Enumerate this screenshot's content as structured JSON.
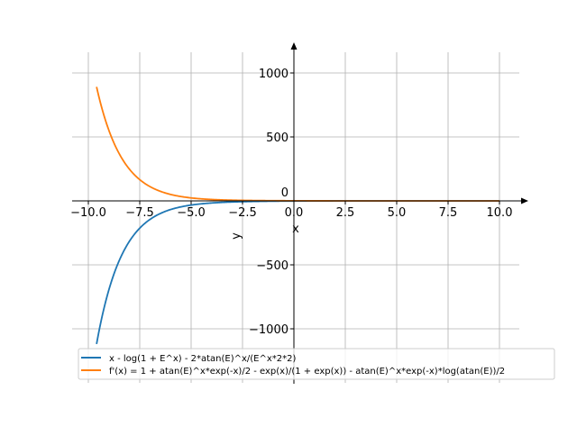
{
  "chart_data": {
    "type": "line",
    "title": "",
    "xlabel": "x",
    "ylabel": "y",
    "xlim": [
      -11,
      11
    ],
    "ylim": [
      -1300,
      1200
    ],
    "grid": true,
    "x_ticks": [
      -10,
      -7.5,
      -5,
      -2.5,
      0,
      2.5,
      5,
      7.5,
      10
    ],
    "x_tick_labels": [
      "−10.0",
      "−7.5",
      "−5.0",
      "−2.5",
      "0.0",
      "2.5",
      "5.0",
      "7.5",
      "10.0"
    ],
    "y_ticks": [
      -1000,
      -500,
      0,
      500,
      1000
    ],
    "y_tick_labels": [
      "−1000",
      "−500",
      "0",
      "500",
      "1000"
    ],
    "x_range": [
      -9.6,
      10
    ],
    "series": [
      {
        "name": "x - log(1 + E^x) - 2*atan(E)^x/(E^x*2*2)",
        "color": "#1f77b4",
        "function": "f",
        "sample_points": [
          [
            -9.6,
            -1122
          ],
          [
            -7.5,
            -239
          ],
          [
            -5,
            -21
          ],
          [
            -2.5,
            -3.5
          ],
          [
            0,
            -1.19
          ],
          [
            5,
            -0.01
          ],
          [
            10,
            0
          ]
        ]
      },
      {
        "name": "f'(x) = 1 + atan(E)^x*exp(-x)/2 - exp(x)/(1 + exp(x)) - atan(E)^x*exp(-x)*log(atan(E))/2",
        "color": "#ff7f0e",
        "function": "df",
        "sample_points": [
          [
            -9.6,
            893
          ],
          [
            -7.5,
            184
          ],
          [
            -5,
            17
          ],
          [
            -2.5,
            1.9
          ],
          [
            0,
            0.9
          ],
          [
            5,
            0.0
          ],
          [
            10,
            0
          ]
        ]
      }
    ],
    "legend_placement": "bottom-left"
  }
}
